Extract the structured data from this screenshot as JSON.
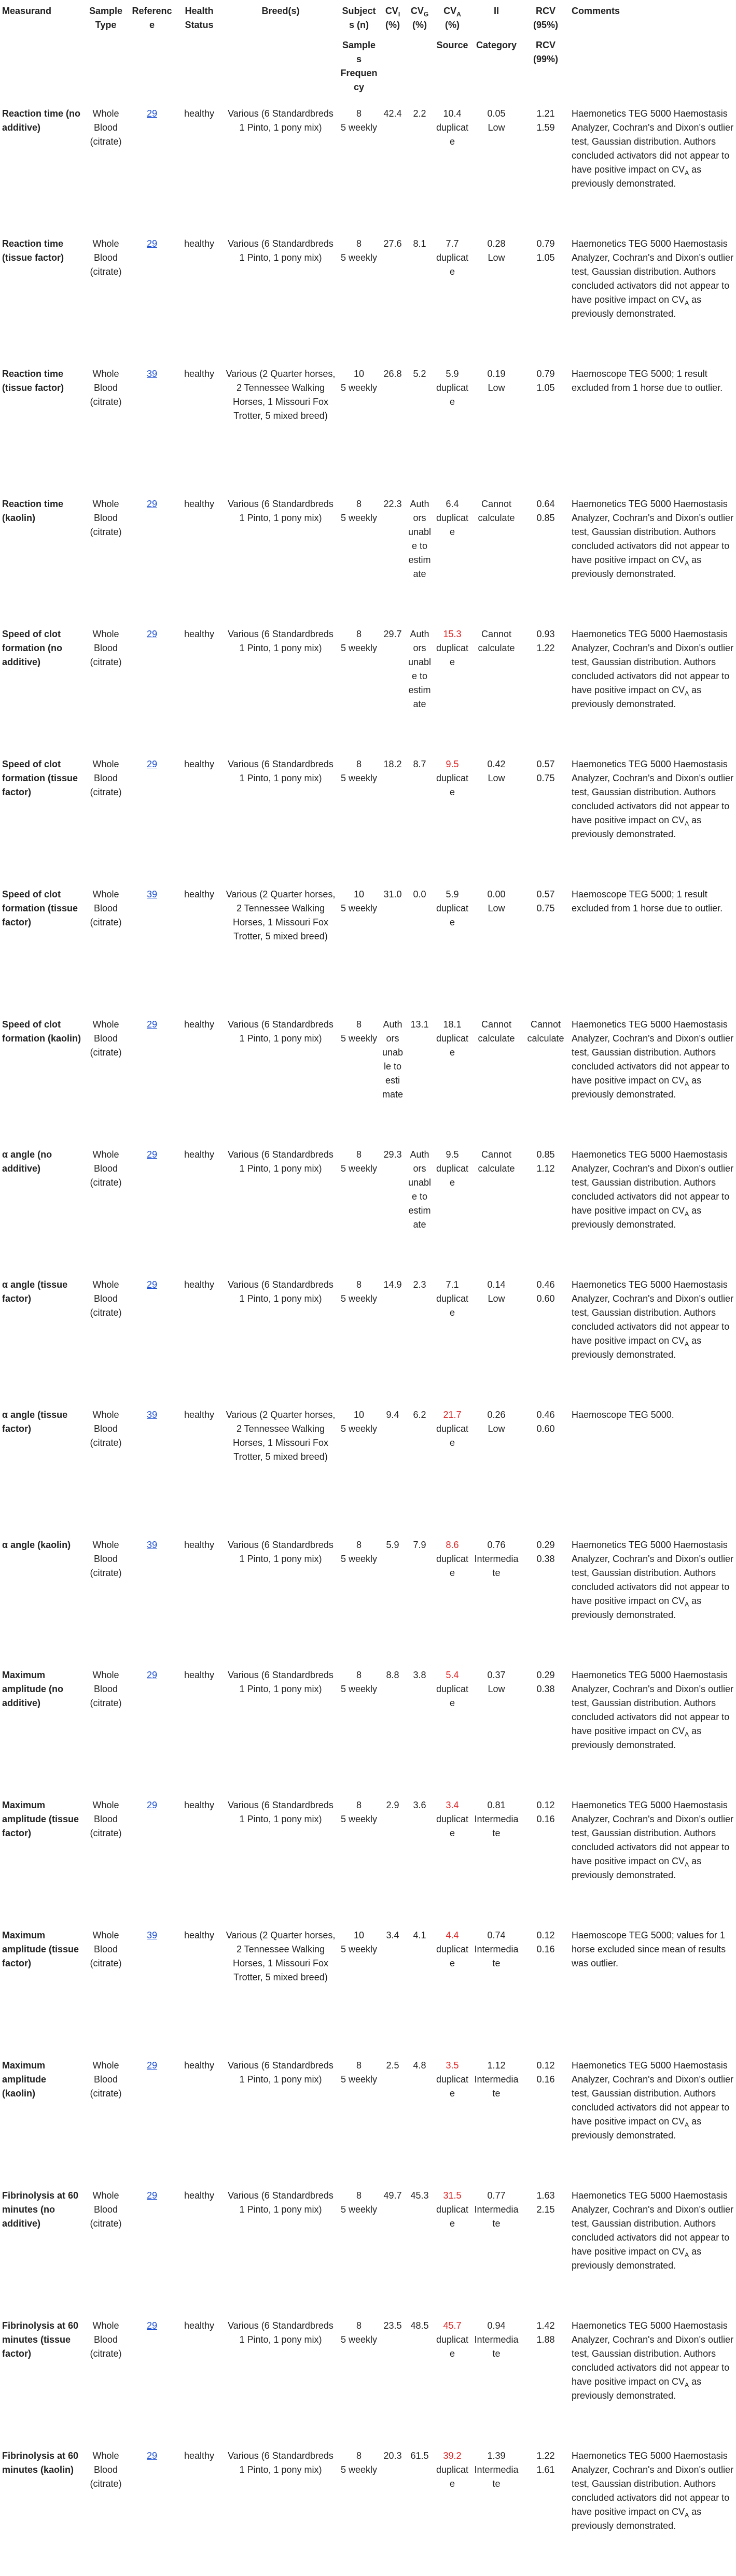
{
  "table": {
    "header": [
      {
        "label": "Measurand"
      },
      {
        "label": "Sample Type"
      },
      {
        "label": "Reference"
      },
      {
        "label": "Health Status"
      },
      {
        "label": "Breed(s)"
      },
      {
        "label": "Subjects (n)",
        "sublabel": "Samples Frequency"
      },
      {
        "label": "CV",
        "sub": "I",
        "suffix": "(%)"
      },
      {
        "label": "CV",
        "sub": "G",
        "suffix": "(%)"
      },
      {
        "label": "CV",
        "sub": "A",
        "suffix": "(%)",
        "sublabel": "Source"
      },
      {
        "label": "II",
        "sublabel": "Category"
      },
      {
        "label": "RCV (95%)",
        "sublabel": "RCV (99%)"
      },
      {
        "label": "Comments"
      }
    ],
    "rows": [
      {
        "measurand": "Reaction time (no additive)",
        "sample_type": "Whole Blood (citrate)",
        "reference": "29",
        "health_status": "healthy",
        "breeds": "Various (6 Standardbreds 1 Pinto, 1 pony mix)",
        "subjects": "8",
        "frequency": "5 weekly",
        "cv_i": "42.4",
        "cv_g": "2.2",
        "cv_a": "10.4",
        "cv_a_color": "#222222",
        "cv_a_source": "duplicate",
        "ii": "0.05",
        "ii_category": "Low",
        "rcv_95": "1.21",
        "rcv_99": "1.59",
        "comments": [
          "Haemonetics TEG 5000 Haemostasis Analyzer, Cochran's and Dixon's outlier test, Gaussian distribution. Authors concluded activators did not appear to have positive impact on CV",
          "A",
          " as previously demonstrated."
        ]
      },
      {
        "measurand": "Reaction time (tissue factor)",
        "sample_type": "Whole Blood (citrate)",
        "reference": "29",
        "health_status": "healthy",
        "breeds": "Various (6 Standardbreds 1 Pinto, 1 pony mix)",
        "subjects": "8",
        "frequency": "5 weekly",
        "cv_i": "27.6",
        "cv_g": "8.1",
        "cv_a": "7.7",
        "cv_a_color": "#222222",
        "cv_a_source": "duplicate",
        "ii": "0.28",
        "ii_category": "Low",
        "rcv_95": "0.79",
        "rcv_99": "1.05",
        "comments": [
          "Haemonetics TEG 5000 Haemostasis Analyzer, Cochran's and Dixon's outlier test, Gaussian distribution. Authors concluded activators did not appear to have positive impact on CV",
          "A",
          " as previously demonstrated."
        ]
      },
      {
        "measurand": "Reaction time (tissue factor)",
        "sample_type": "Whole Blood (citrate)",
        "reference": "39",
        "health_status": "healthy",
        "breeds": "Various (2 Quarter horses, 2 Tennessee Walking Horses, 1 Missouri Fox Trotter, 5 mixed breed)",
        "subjects": "10",
        "frequency": "5 weekly",
        "cv_i": "26.8",
        "cv_g": "5.2",
        "cv_a": "5.9",
        "cv_a_color": "#222222",
        "cv_a_source": "duplicate",
        "ii": "0.19",
        "ii_category": "Low",
        "rcv_95": "0.79",
        "rcv_99": "1.05",
        "comments": [
          "Haemoscope TEG 5000; 1 result excluded from 1 horse due to outlier."
        ]
      },
      {
        "measurand": "Reaction time (kaolin)",
        "sample_type": "Whole Blood (citrate)",
        "reference": "29",
        "health_status": "healthy",
        "breeds": "Various (6 Standardbreds 1 Pinto, 1 pony mix)",
        "subjects": "8",
        "frequency": "5 weekly",
        "cv_i": "22.3",
        "cv_g": "Authors unable to estimate",
        "cv_a": "6.4",
        "cv_a_color": "#222222",
        "cv_a_source": "duplicate",
        "ii": "Cannot calculate",
        "rcv_95": "0.64",
        "rcv_99": "0.85",
        "comments": [
          "Haemonetics TEG 5000 Haemostasis Analyzer, Cochran's and Dixon's outlier test, Gaussian distribution. Authors concluded activators did not appear to have positive impact on CV",
          "A",
          " as previously demonstrated."
        ]
      },
      {
        "measurand": "Speed of clot formation (no additive)",
        "sample_type": "Whole Blood (citrate)",
        "reference": "29",
        "health_status": "healthy",
        "breeds": "Various (6 Standardbreds 1 Pinto, 1 pony mix)",
        "subjects": "8",
        "frequency": "5 weekly",
        "cv_i": "29.7",
        "cv_g": "Authors unable to estimate",
        "cv_a": "15.3",
        "cv_a_color": "#e02424",
        "cv_a_source": "duplicate",
        "ii": "Cannot calculate",
        "rcv_95": "0.93",
        "rcv_99": "1.22",
        "comments": [
          "Haemonetics TEG 5000 Haemostasis Analyzer, Cochran's and Dixon's outlier test, Gaussian distribution. Authors concluded activators did not appear to have positive impact on CV",
          "A",
          " as previously demonstrated."
        ]
      },
      {
        "measurand": "Speed of clot formation (tissue factor)",
        "sample_type": "Whole Blood (citrate)",
        "reference": "29",
        "health_status": "healthy",
        "breeds": "Various (6 Standardbreds 1 Pinto, 1 pony mix)",
        "subjects": "8",
        "frequency": "5 weekly",
        "cv_i": "18.2",
        "cv_g": "8.7",
        "cv_a": "9.5",
        "cv_a_color": "#e02424",
        "cv_a_source": "duplicate",
        "ii": "0.42",
        "ii_category": "Low",
        "rcv_95": "0.57",
        "rcv_99": "0.75",
        "comments": [
          "Haemonetics TEG 5000 Haemostasis Analyzer, Cochran's and Dixon's outlier test, Gaussian distribution. Authors concluded activators did not appear to have positive impact on CV",
          "A",
          " as previously demonstrated."
        ]
      },
      {
        "measurand": "Speed of clot formation (tissue factor)",
        "sample_type": "Whole Blood (citrate)",
        "reference": "39",
        "health_status": "healthy",
        "breeds": "Various (2 Quarter horses, 2 Tennessee Walking Horses, 1 Missouri Fox Trotter, 5 mixed breed)",
        "subjects": "10",
        "frequency": "5 weekly",
        "cv_i": "31.0",
        "cv_g": "0.0",
        "cv_a": "5.9",
        "cv_a_color": "#222222",
        "cv_a_source": "duplicate",
        "ii": "0.00",
        "ii_category": "Low",
        "rcv_95": "0.57",
        "rcv_99": "0.75",
        "comments": [
          "Haemoscope TEG 5000; 1 result excluded from 1 horse due to outlier."
        ]
      },
      {
        "measurand": "Speed of clot formation (kaolin)",
        "sample_type": "Whole Blood (citrate)",
        "reference": "29",
        "health_status": "healthy",
        "breeds": "Various (6 Standardbreds 1 Pinto, 1 pony mix)",
        "subjects": "8",
        "frequency": "5 weekly",
        "cv_i": "Authors unable to estimate",
        "cv_g": "13.1",
        "cv_a": "18.1",
        "cv_a_color": "#222222",
        "cv_a_source": "duplicate",
        "ii": "Cannot calculate",
        "rcv_95": "Cannot calculate",
        "comments": [
          "Haemonetics TEG 5000 Haemostasis Analyzer, Cochran's and Dixon's outlier test, Gaussian distribution. Authors concluded activators did not appear to have positive impact on CV",
          "A",
          " as previously demonstrated."
        ]
      },
      {
        "measurand": "α angle (no additive)",
        "sample_type": "Whole Blood (citrate)",
        "reference": "29",
        "health_status": "healthy",
        "breeds": "Various (6 Standardbreds 1 Pinto, 1 pony mix)",
        "subjects": "8",
        "frequency": "5 weekly",
        "cv_i": "29.3",
        "cv_g": "Authors unable to estimate",
        "cv_a": "9.5",
        "cv_a_color": "#222222",
        "cv_a_source": "duplicate",
        "ii": "Cannot calculate",
        "rcv_95": "0.85",
        "rcv_99": "1.12",
        "comments": [
          "Haemonetics TEG 5000 Haemostasis Analyzer, Cochran's and Dixon's outlier test, Gaussian distribution. Authors concluded activators did not appear to have positive impact on CV",
          "A",
          " as previously demonstrated."
        ]
      },
      {
        "measurand": "α angle (tissue factor)",
        "sample_type": "Whole Blood (citrate)",
        "reference": "29",
        "health_status": "healthy",
        "breeds": "Various (6 Standardbreds 1 Pinto, 1 pony mix)",
        "subjects": "8",
        "frequency": "5 weekly",
        "cv_i": "14.9",
        "cv_g": "2.3",
        "cv_a": "7.1",
        "cv_a_color": "#222222",
        "cv_a_source": "duplicate",
        "ii": "0.14",
        "ii_category": "Low",
        "rcv_95": "0.46",
        "rcv_99": "0.60",
        "comments": [
          "Haemonetics TEG 5000 Haemostasis Analyzer, Cochran's and Dixon's outlier test, Gaussian distribution. Authors concluded activators did not appear to have positive impact on CV",
          "A",
          " as previously demonstrated."
        ]
      },
      {
        "measurand": "α angle (tissue factor)",
        "sample_type": "Whole Blood (citrate)",
        "reference": "39",
        "health_status": "healthy",
        "breeds": "Various (2 Quarter horses, 2 Tennessee Walking Horses, 1 Missouri Fox Trotter, 5 mixed breed)",
        "subjects": "10",
        "frequency": "5 weekly",
        "cv_i": "9.4",
        "cv_g": "6.2",
        "cv_a": "21.7",
        "cv_a_color": "#e02424",
        "cv_a_source": "duplicate",
        "ii": "0.26",
        "ii_category": "Low",
        "rcv_95": "0.46",
        "rcv_99": "0.60",
        "comments": [
          "Haemoscope TEG 5000."
        ]
      },
      {
        "measurand": "α angle (kaolin)",
        "sample_type": "Whole Blood (citrate)",
        "reference": "39",
        "health_status": "healthy",
        "breeds": "Various (6 Standardbreds 1 Pinto, 1 pony mix)",
        "subjects": "8",
        "frequency": "5 weekly",
        "cv_i": "5.9",
        "cv_g": "7.9",
        "cv_a": "8.6",
        "cv_a_color": "#e02424",
        "cv_a_source": "duplicate",
        "ii": "0.76",
        "ii_category": "Intermediate",
        "rcv_95": "0.29",
        "rcv_99": "0.38",
        "comments": [
          "Haemonetics TEG 5000 Haemostasis Analyzer, Cochran's and Dixon's outlier test, Gaussian distribution. Authors concluded activators did not appear to have positive impact on CV",
          "A",
          " as previously demonstrated."
        ]
      },
      {
        "measurand": "Maximum amplitude (no additive)",
        "sample_type": "Whole Blood (citrate)",
        "reference": "29",
        "health_status": "healthy",
        "breeds": "Various (6 Standardbreds 1 Pinto, 1 pony mix)",
        "subjects": "8",
        "frequency": "5 weekly",
        "cv_i": "8.8",
        "cv_g": "3.8",
        "cv_a": "5.4",
        "cv_a_color": "#e02424",
        "cv_a_source": "duplicate",
        "ii": "0.37",
        "ii_category": "Low",
        "rcv_95": "0.29",
        "rcv_99": "0.38",
        "comments": [
          "Haemonetics TEG 5000 Haemostasis Analyzer, Cochran's and Dixon's outlier test, Gaussian distribution. Authors concluded activators did not appear to have positive impact on CV",
          "A",
          " as previously demonstrated."
        ]
      },
      {
        "measurand": "Maximum amplitude (tissue factor)",
        "sample_type": "Whole Blood (citrate)",
        "reference": "29",
        "health_status": "healthy",
        "breeds": "Various (6 Standardbreds 1 Pinto, 1 pony mix)",
        "subjects": "8",
        "frequency": "5 weekly",
        "cv_i": "2.9",
        "cv_g": "3.6",
        "cv_a": "3.4",
        "cv_a_color": "#e02424",
        "cv_a_source": "duplicate",
        "ii": "0.81",
        "ii_category": "Intermediate",
        "rcv_95": "0.12",
        "rcv_99": "0.16",
        "comments": [
          "Haemonetics TEG 5000 Haemostasis Analyzer, Cochran's and Dixon's outlier test, Gaussian distribution. Authors concluded activators did not appear to have positive impact on CV",
          "A",
          " as previously demonstrated."
        ]
      },
      {
        "measurand": "Maximum amplitude (tissue factor)",
        "sample_type": "Whole Blood (citrate)",
        "reference": "39",
        "health_status": "healthy",
        "breeds": "Various (2 Quarter horses, 2 Tennessee Walking Horses, 1 Missouri Fox Trotter, 5 mixed breed)",
        "subjects": "10",
        "frequency": "5 weekly",
        "cv_i": "3.4",
        "cv_g": "4.1",
        "cv_a": "4.4",
        "cv_a_color": "#e02424",
        "cv_a_source": "duplicate",
        "ii": "0.74",
        "ii_category": "Intermediate",
        "rcv_95": "0.12",
        "rcv_99": "0.16",
        "comments": [
          "Haemoscope TEG 5000; values for 1 horse excluded since mean of results was outlier."
        ]
      },
      {
        "measurand": "Maximum amplitude (kaolin)",
        "sample_type": "Whole Blood (citrate)",
        "reference": "29",
        "health_status": "healthy",
        "breeds": "Various (6 Standardbreds 1 Pinto, 1 pony mix)",
        "subjects": "8",
        "frequency": "5 weekly",
        "cv_i": "2.5",
        "cv_g": "4.8",
        "cv_a": "3.5",
        "cv_a_color": "#e02424",
        "cv_a_source": "duplicate",
        "ii": "1.12",
        "ii_category": "Intermediate",
        "rcv_95": "0.12",
        "rcv_99": "0.16",
        "comments": [
          "Haemonetics TEG 5000 Haemostasis Analyzer, Cochran's and Dixon's outlier test, Gaussian distribution. Authors concluded activators did not appear to have positive impact on CV",
          "A",
          " as previously demonstrated."
        ]
      },
      {
        "measurand": "Fibrinolysis at 60 minutes (no additive)",
        "sample_type": "Whole Blood (citrate)",
        "reference": "29",
        "health_status": "healthy",
        "breeds": "Various (6 Standardbreds 1 Pinto, 1 pony mix)",
        "subjects": "8",
        "frequency": "5 weekly",
        "cv_i": "49.7",
        "cv_g": "45.3",
        "cv_a": "31.5",
        "cv_a_color": "#e02424",
        "cv_a_source": "duplicate",
        "ii": "0.77",
        "ii_category": "Intermediate",
        "rcv_95": "1.63",
        "rcv_99": "2.15",
        "comments": [
          "Haemonetics TEG 5000 Haemostasis Analyzer, Cochran's and Dixon's outlier test, Gaussian distribution. Authors concluded activators did not appear to have positive impact on CV",
          "A",
          " as previously demonstrated."
        ]
      },
      {
        "measurand": "Fibrinolysis at 60 minutes (tissue factor)",
        "sample_type": "Whole Blood (citrate)",
        "reference": "29",
        "health_status": "healthy",
        "breeds": "Various (6 Standardbreds 1 Pinto, 1 pony mix)",
        "subjects": "8",
        "frequency": "5 weekly",
        "cv_i": "23.5",
        "cv_g": "48.5",
        "cv_a": "45.7",
        "cv_a_color": "#e02424",
        "cv_a_source": "duplicate",
        "ii": "0.94",
        "ii_category": "Intermediate",
        "rcv_95": "1.42",
        "rcv_99": "1.88",
        "comments": [
          "Haemonetics TEG 5000 Haemostasis Analyzer, Cochran's and Dixon's outlier test, Gaussian distribution. Authors concluded activators did not appear to have positive impact on CV",
          "A",
          " as previously demonstrated."
        ]
      },
      {
        "measurand": "Fibrinolysis at 60 minutes (kaolin)",
        "sample_type": "Whole Blood (citrate)",
        "reference": "29",
        "health_status": "healthy",
        "breeds": "Various (6 Standardbreds 1 Pinto, 1 pony mix)",
        "subjects": "8",
        "frequency": "5 weekly",
        "cv_i": "20.3",
        "cv_g": "61.5",
        "cv_a": "39.2",
        "cv_a_color": "#e02424",
        "cv_a_source": "duplicate",
        "ii": "1.39",
        "ii_category": "Intermediate",
        "rcv_95": "1.22",
        "rcv_99": "1.61",
        "comments": [
          "Haemonetics TEG 5000 Haemostasis Analyzer, Cochran's and Dixon's outlier test, Gaussian distribution. Authors concluded activators did not appear to have positive impact on CV",
          "A",
          " as previously demonstrated."
        ]
      }
    ]
  }
}
